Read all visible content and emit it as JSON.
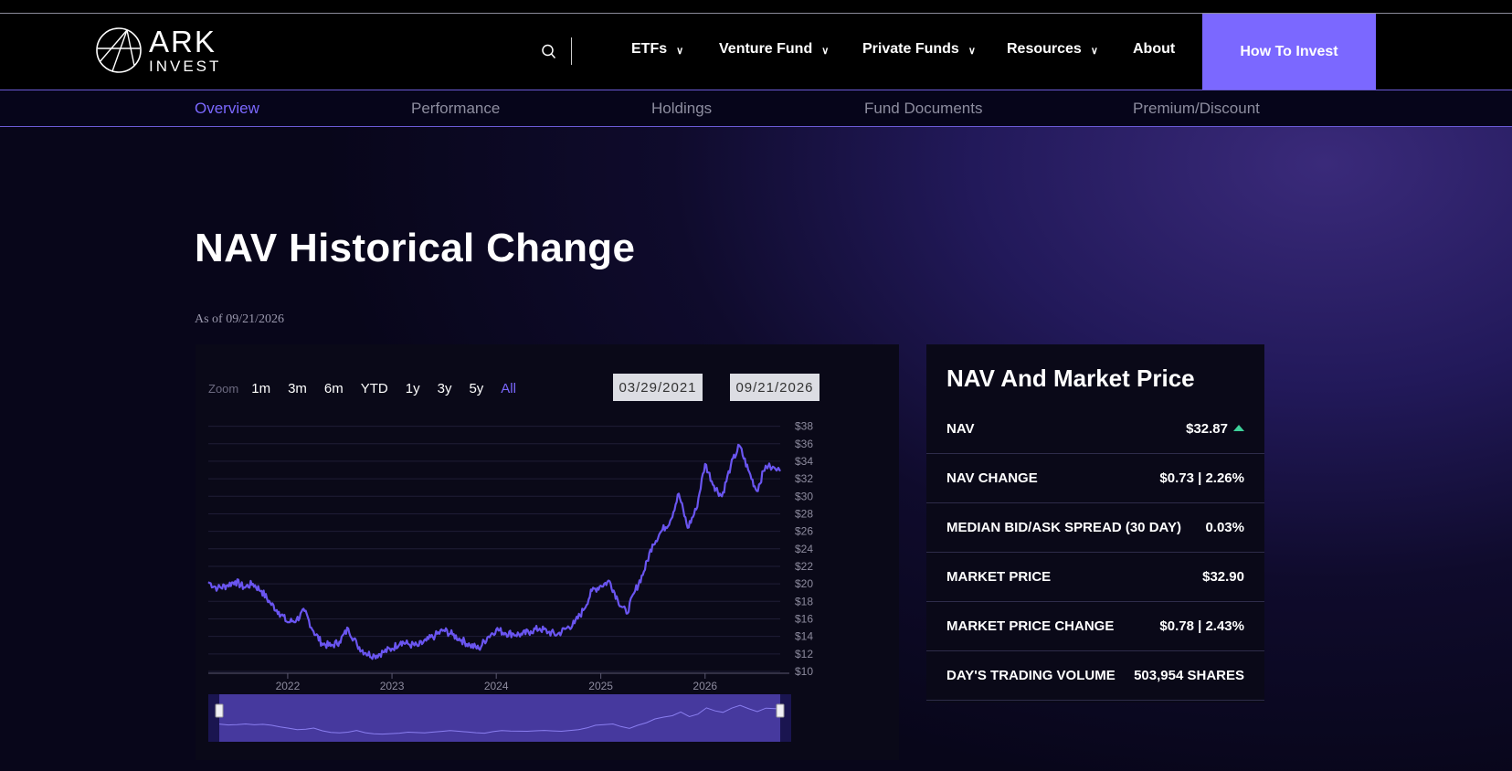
{
  "brand": {
    "name": "ARK",
    "sub": "INVEST"
  },
  "nav": {
    "items": [
      {
        "label": "ETFs",
        "has_menu": true
      },
      {
        "label": "Venture Fund",
        "has_menu": true
      },
      {
        "label": "Private Funds",
        "has_menu": true
      },
      {
        "label": "Resources",
        "has_menu": true
      },
      {
        "label": "About",
        "has_menu": false
      }
    ],
    "cta": "How To Invest",
    "search_icon": "search-icon"
  },
  "subnav": {
    "items": [
      "Overview",
      "Performance",
      "Holdings",
      "Fund Documents",
      "Premium/Discount"
    ],
    "active": "Overview"
  },
  "page": {
    "title": "NAV Historical Change",
    "as_of": "As of 09/21/2026"
  },
  "chart_controls": {
    "zoom_label": "Zoom",
    "zoom_options": [
      "1m",
      "3m",
      "6m",
      "YTD",
      "1y",
      "3y",
      "5y",
      "All"
    ],
    "selected": "All",
    "from_date": "03/29/2021",
    "to_date": "09/21/2026"
  },
  "colors": {
    "accent": "#7b68ff",
    "line": "#6a55f0",
    "up": "#3ed19a"
  },
  "chart_data": {
    "type": "line",
    "series": [
      {
        "values": [
          [
            "2021-03-29",
            20.2
          ],
          [
            "2021-05-01",
            19.5
          ],
          [
            "2021-06-01",
            19.8
          ],
          [
            "2021-07-01",
            20.3
          ],
          [
            "2021-08-01",
            19.6
          ],
          [
            "2021-09-01",
            20.0
          ],
          [
            "2021-10-01",
            19.2
          ],
          [
            "2021-11-01",
            17.8
          ],
          [
            "2021-12-01",
            16.8
          ],
          [
            "2022-01-01",
            15.6
          ],
          [
            "2022-02-01",
            15.9
          ],
          [
            "2022-03-01",
            16.9
          ],
          [
            "2022-04-01",
            14.6
          ],
          [
            "2022-05-01",
            13.2
          ],
          [
            "2022-06-01",
            12.9
          ],
          [
            "2022-07-01",
            13.4
          ],
          [
            "2022-08-01",
            14.9
          ],
          [
            "2022-09-01",
            13.0
          ],
          [
            "2022-10-01",
            12.1
          ],
          [
            "2022-11-01",
            11.8
          ],
          [
            "2022-12-01",
            12.2
          ],
          [
            "2023-01-01",
            12.6
          ],
          [
            "2023-02-01",
            13.4
          ],
          [
            "2023-03-01",
            13.1
          ],
          [
            "2023-04-01",
            12.9
          ],
          [
            "2023-05-01",
            13.5
          ],
          [
            "2023-06-01",
            14.1
          ],
          [
            "2023-07-01",
            14.7
          ],
          [
            "2023-08-01",
            14.2
          ],
          [
            "2023-09-01",
            13.6
          ],
          [
            "2023-10-01",
            13.0
          ],
          [
            "2023-11-01",
            12.6
          ],
          [
            "2023-12-01",
            13.9
          ],
          [
            "2024-01-01",
            14.8
          ],
          [
            "2024-02-01",
            14.4
          ],
          [
            "2024-03-01",
            14.3
          ],
          [
            "2024-04-01",
            14.2
          ],
          [
            "2024-05-01",
            14.6
          ],
          [
            "2024-06-01",
            14.9
          ],
          [
            "2024-07-01",
            14.5
          ],
          [
            "2024-08-01",
            14.2
          ],
          [
            "2024-09-01",
            14.9
          ],
          [
            "2024-10-01",
            15.5
          ],
          [
            "2024-11-01",
            17.0
          ],
          [
            "2024-12-01",
            19.2
          ],
          [
            "2025-01-01",
            19.8
          ],
          [
            "2025-02-01",
            20.3
          ],
          [
            "2025-03-01",
            18.2
          ],
          [
            "2025-04-01",
            16.6
          ],
          [
            "2025-05-01",
            19.2
          ],
          [
            "2025-06-01",
            21.4
          ],
          [
            "2025-07-01",
            24.5
          ],
          [
            "2025-08-01",
            26.0
          ],
          [
            "2025-09-01",
            27.2
          ],
          [
            "2025-10-01",
            30.3
          ],
          [
            "2025-11-01",
            26.4
          ],
          [
            "2025-12-01",
            28.5
          ],
          [
            "2026-01-01",
            33.7
          ],
          [
            "2026-02-01",
            31.2
          ],
          [
            "2026-03-01",
            30.0
          ],
          [
            "2026-04-01",
            33.5
          ],
          [
            "2026-05-01",
            35.8
          ],
          [
            "2026-06-01",
            33.0
          ],
          [
            "2026-07-01",
            30.6
          ],
          [
            "2026-08-01",
            33.5
          ],
          [
            "2026-09-21",
            32.87
          ]
        ]
      }
    ],
    "x_ticks": [
      "2022",
      "2023",
      "2024",
      "2025",
      "2026"
    ],
    "y_ticks": [
      "$10",
      "$12",
      "$14",
      "$16",
      "$18",
      "$20",
      "$22",
      "$24",
      "$26",
      "$28",
      "$30",
      "$32",
      "$34",
      "$36",
      "$38"
    ],
    "ylim": [
      10,
      39
    ],
    "xlim": [
      "2021-03-29",
      "2026-09-21"
    ],
    "grid": true,
    "navigator": true
  },
  "stats": {
    "title": "NAV And Market Price",
    "rows": [
      {
        "label": "NAV",
        "value": "$32.87",
        "trend": "up"
      },
      {
        "label": "NAV CHANGE",
        "value": "$0.73 | 2.26%"
      },
      {
        "label": "MEDIAN BID/ASK SPREAD (30 DAY)",
        "value": "0.03%"
      },
      {
        "label": "MARKET PRICE",
        "value": "$32.90"
      },
      {
        "label": "MARKET PRICE CHANGE",
        "value": "$0.78 | 2.43%"
      },
      {
        "label": "DAY'S TRADING VOLUME",
        "value": "503,954 SHARES"
      }
    ]
  }
}
